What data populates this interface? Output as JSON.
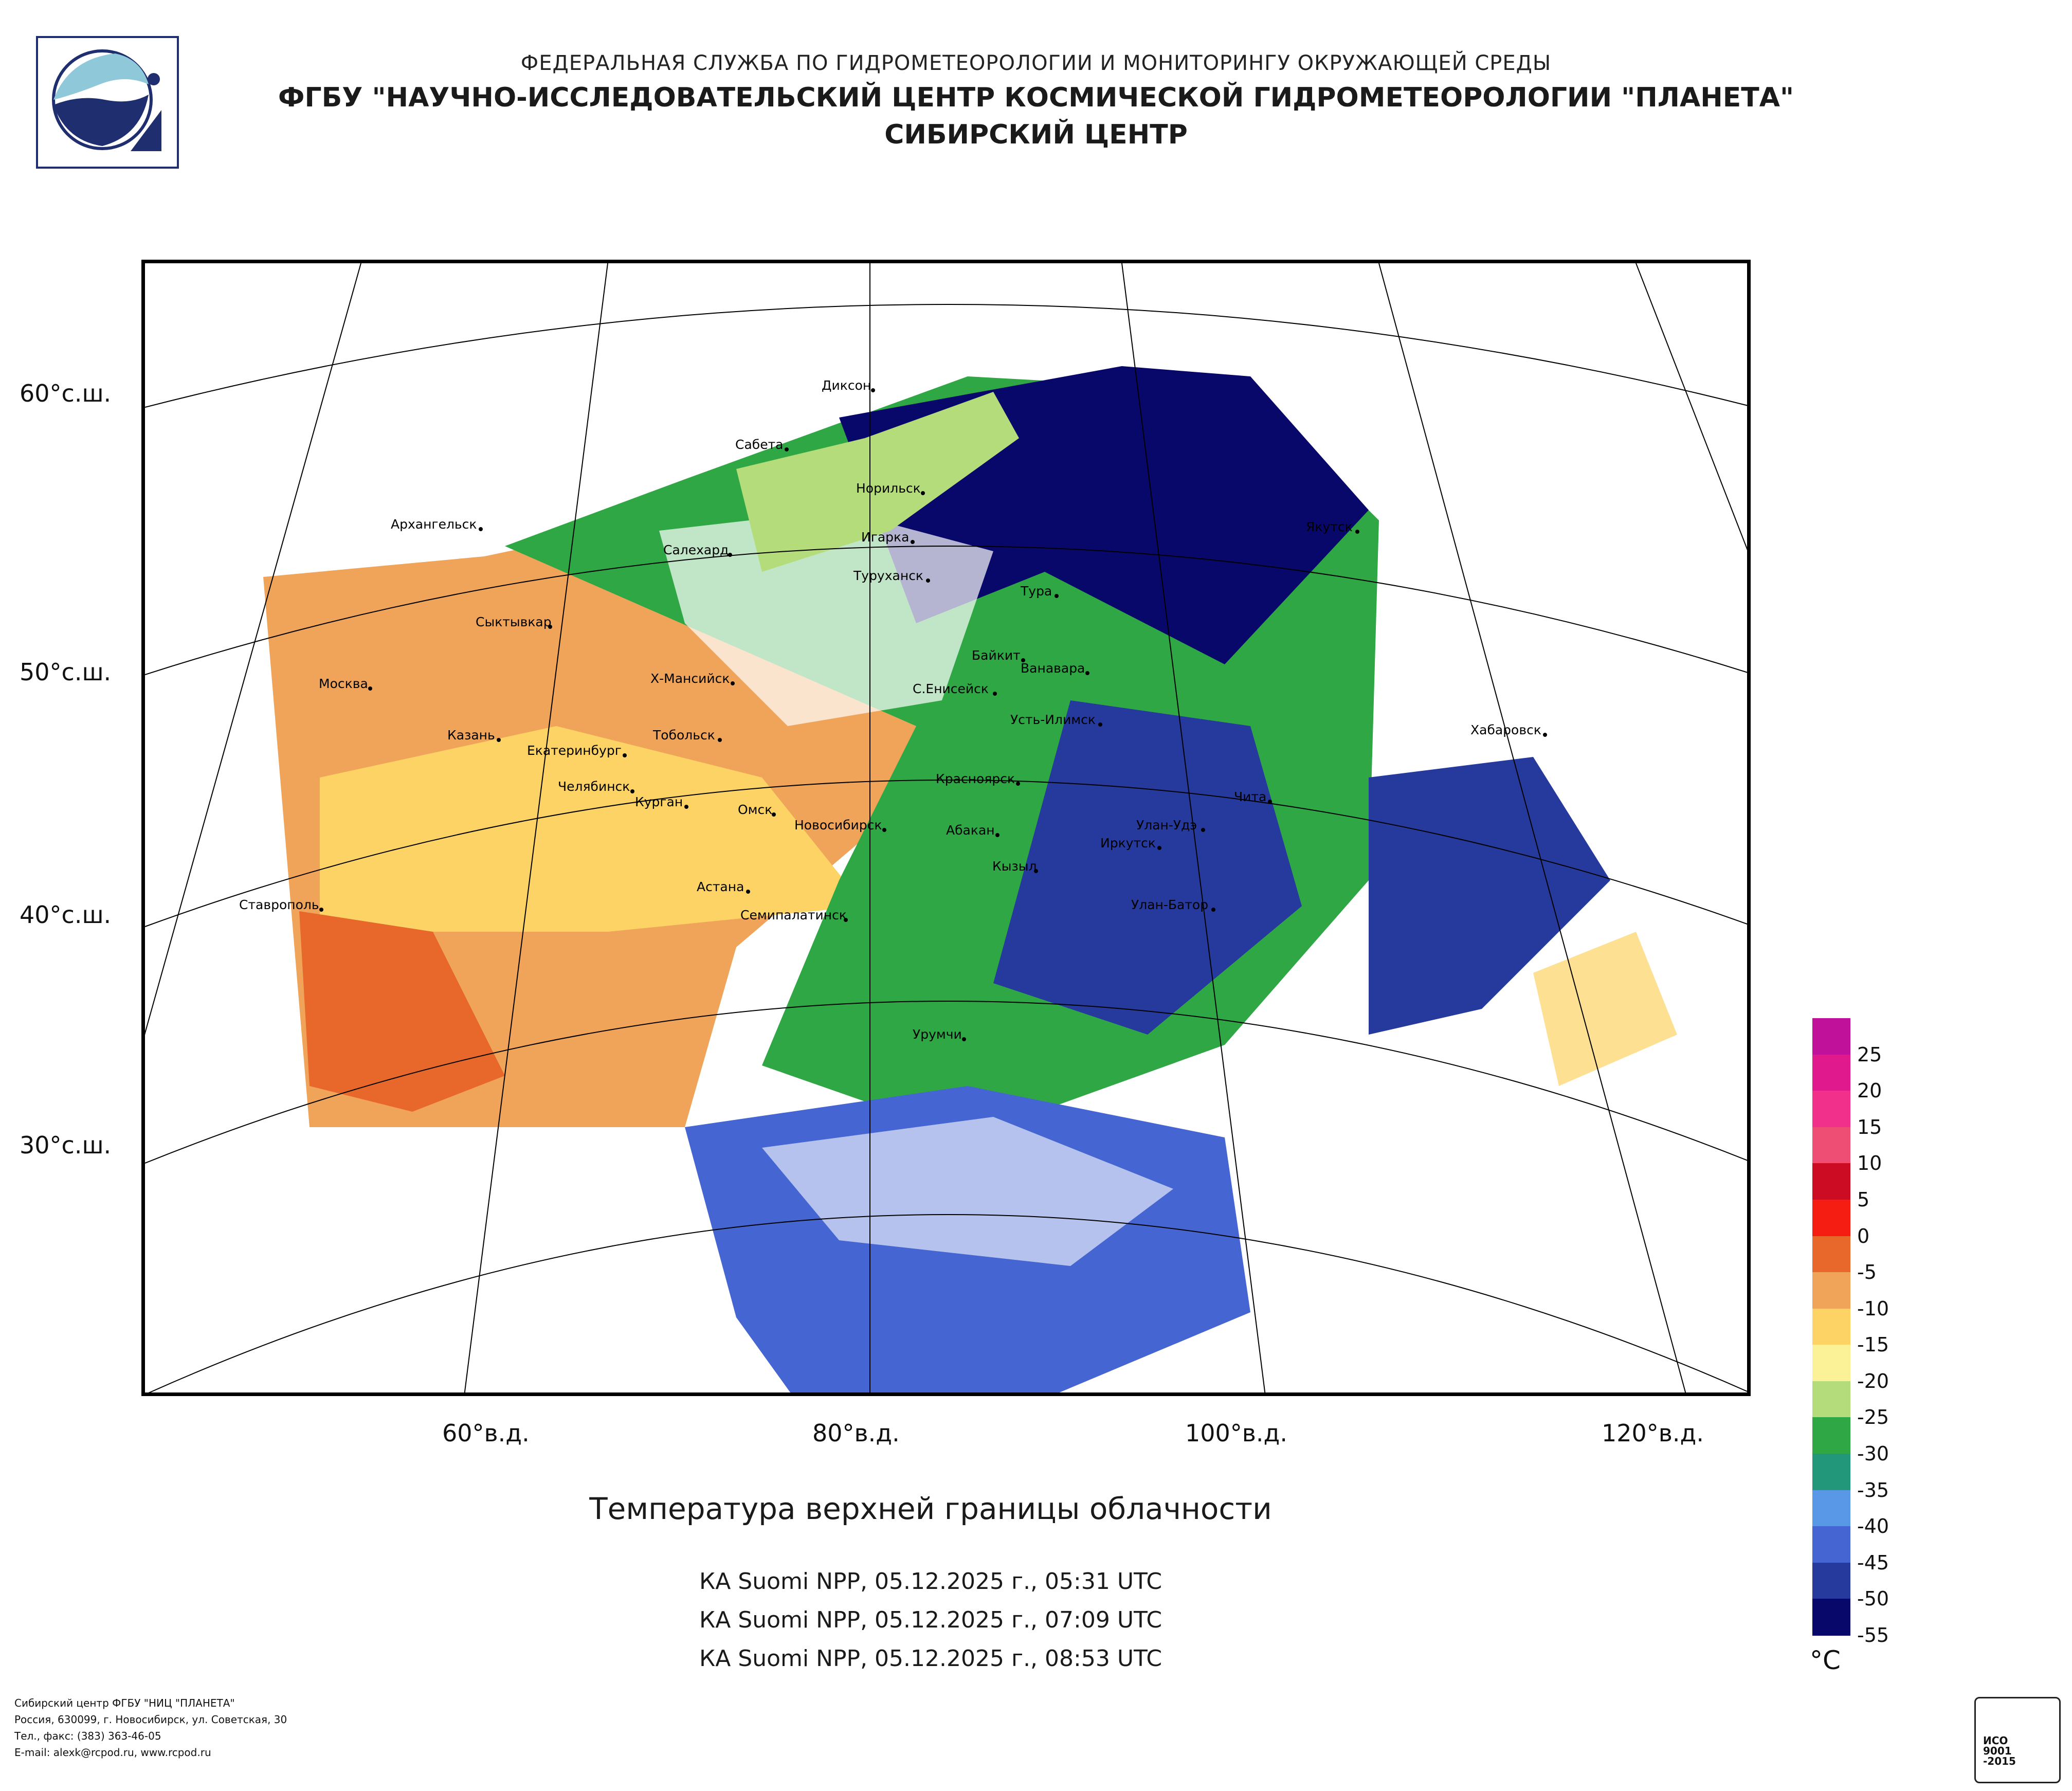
{
  "header": {
    "line1": "ФЕДЕРАЛЬНАЯ СЛУЖБА ПО ГИДРОМЕТЕОРОЛОГИИ И МОНИТОРИНГУ ОКРУЖАЮЩЕЙ СРЕДЫ",
    "line2": "ФГБУ \"НАУЧНО-ИССЛЕДОВАТЕЛЬСКИЙ ЦЕНТР КОСМИЧЕСКОЙ ГИДРОМЕТЕОРОЛОГИИ \"ПЛАНЕТА\"",
    "line3": "СИБИРСКИЙ ЦЕНТР"
  },
  "map": {
    "lat_labels": [
      "60°с.ш.",
      "50°с.ш.",
      "40°с.ш.",
      "30°с.ш."
    ],
    "lon_labels": [
      "60°в.д.",
      "80°в.д.",
      "100°в.д.",
      "120°в.д."
    ],
    "cities": [
      "Диксон",
      "Сабета",
      "Норильск",
      "Архангельск",
      "Игарка",
      "Салехард",
      "Туруханск",
      "Якутск",
      "Тура",
      "Сыктывкар",
      "Байкит",
      "Ванавара",
      "Москва",
      "Х-Мансийск",
      "С.Енисейск",
      "Усть-Илимск",
      "Хабаровск",
      "Казань",
      "Тобольск",
      "Екатеринбург",
      "Красноярск",
      "Челябинск",
      "Курган",
      "Чита",
      "Омск",
      "Новосибирск",
      "Улан-Удэ",
      "Абакан",
      "Иркутск",
      "Кызыл",
      "Астана",
      "Ставрополь",
      "Улан-Батор",
      "Семипалатинск",
      "Урумчи"
    ]
  },
  "product": {
    "title": "Температура верхней границы облачности",
    "passes": [
      "КА Suomi NPP, 05.12.2025 г., 05:31 UTC",
      "КА Suomi NPP, 05.12.2025 г., 07:09 UTC",
      "КА Suomi NPP, 05.12.2025 г., 08:53 UTC"
    ]
  },
  "legend": {
    "unit": "°C",
    "labels": [
      "25",
      "20",
      "15",
      "10",
      "5",
      "0",
      "-5",
      "-10",
      "-15",
      "-20",
      "-25",
      "-30",
      "-35",
      "-40",
      "-45",
      "-50",
      "-55"
    ],
    "colors": [
      "#c0119a",
      "#e01a8c",
      "#f0308a",
      "#ee4e74",
      "#cc0c23",
      "#f51c12",
      "#e8672a",
      "#f0a45a",
      "#fdd365",
      "#fbf196",
      "#b5dc7a",
      "#2ea744",
      "#22977a",
      "#5898e6",
      "#4566d2",
      "#263a9e",
      "#08086a"
    ]
  },
  "footer": {
    "line1": "Сибирский центр ФГБУ \"НИЦ \"ПЛАНЕТА\"",
    "line2": "Россия, 630099, г. Новосибирск, ул. Советская, 30",
    "line3": "Тел., факс: (383) 363-46-05",
    "line4": "E-mail: alexk@rcpod.ru, www.rcpod.ru"
  },
  "cert": {
    "line1": "ИСО",
    "line2": "9001",
    "line3": "-2015"
  }
}
